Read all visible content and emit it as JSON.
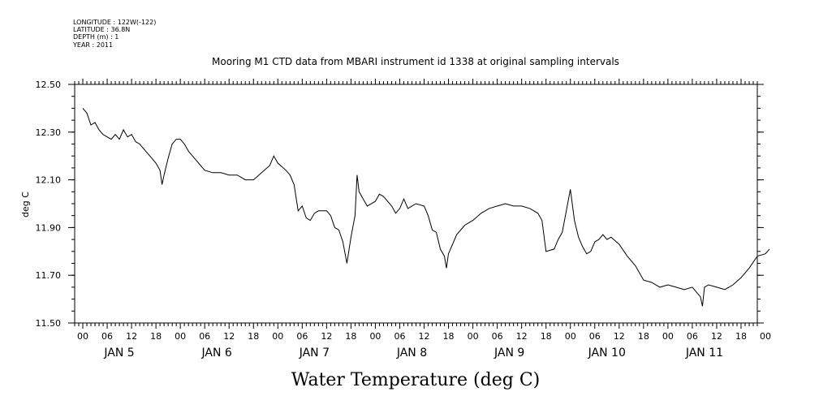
{
  "header": {
    "lines": [
      "LONGITUDE : 122W(-122)",
      "LATITUDE : 36.8N",
      "DEPTH (m) : 1",
      "YEAR : 2011"
    ]
  },
  "chart_data": {
    "type": "line",
    "title": "Mooring M1 CTD data from MBARI instrument id 1338 at original sampling intervals",
    "xlabel": "Water Temperature (deg C)",
    "ylabel": "deg C",
    "xlim_hours": [
      -2,
      166
    ],
    "ylim": [
      11.5,
      12.5
    ],
    "yticks": [
      "12.50",
      "12.30",
      "12.10",
      "11.90",
      "11.70",
      "11.50"
    ],
    "ytick_values": [
      12.5,
      12.3,
      12.1,
      11.9,
      11.7,
      11.5
    ],
    "hour_ticks": [
      "00",
      "06",
      "12",
      "18"
    ],
    "days": [
      "JAN 5",
      "JAN 6",
      "JAN 7",
      "JAN 8",
      "JAN 9",
      "JAN 10",
      "JAN 11"
    ],
    "series": [
      {
        "points": [
          [
            "JAN 5 00:00",
            12.4
          ],
          [
            "JAN 5 01:00",
            12.38
          ],
          [
            "JAN 5 02:00",
            12.33
          ],
          [
            "JAN 5 03:00",
            12.34
          ],
          [
            "JAN 5 04:00",
            12.31
          ],
          [
            "JAN 5 05:00",
            12.29
          ],
          [
            "JAN 5 06:00",
            12.28
          ],
          [
            "JAN 5 07:00",
            12.27
          ],
          [
            "JAN 5 08:00",
            12.29
          ],
          [
            "JAN 5 09:00",
            12.27
          ],
          [
            "JAN 5 10:00",
            12.31
          ],
          [
            "JAN 5 11:00",
            12.28
          ],
          [
            "JAN 5 12:00",
            12.29
          ],
          [
            "JAN 5 13:00",
            12.26
          ],
          [
            "JAN 5 14:00",
            12.25
          ],
          [
            "JAN 5 15:00",
            12.23
          ],
          [
            "JAN 5 16:00",
            12.21
          ],
          [
            "JAN 5 17:00",
            12.19
          ],
          [
            "JAN 5 18:00",
            12.17
          ],
          [
            "JAN 5 19:00",
            12.14
          ],
          [
            "JAN 5 19:30",
            12.08
          ],
          [
            "JAN 5 20:00",
            12.12
          ],
          [
            "JAN 5 21:00",
            12.19
          ],
          [
            "JAN 5 22:00",
            12.25
          ],
          [
            "JAN 5 23:00",
            12.27
          ],
          [
            "JAN 6 00:00",
            12.27
          ],
          [
            "JAN 6 01:00",
            12.25
          ],
          [
            "JAN 6 02:00",
            12.22
          ],
          [
            "JAN 6 03:00",
            12.2
          ],
          [
            "JAN 6 04:00",
            12.18
          ],
          [
            "JAN 6 05:00",
            12.16
          ],
          [
            "JAN 6 06:00",
            12.14
          ],
          [
            "JAN 6 08:00",
            12.13
          ],
          [
            "JAN 6 10:00",
            12.13
          ],
          [
            "JAN 6 12:00",
            12.12
          ],
          [
            "JAN 6 14:00",
            12.12
          ],
          [
            "JAN 6 16:00",
            12.1
          ],
          [
            "JAN 6 18:00",
            12.1
          ],
          [
            "JAN 6 20:00",
            12.13
          ],
          [
            "JAN 6 22:00",
            12.16
          ],
          [
            "JAN 6 23:00",
            12.2
          ],
          [
            "JAN 7 00:00",
            12.17
          ],
          [
            "JAN 7 02:00",
            12.14
          ],
          [
            "JAN 7 03:00",
            12.12
          ],
          [
            "JAN 7 04:00",
            12.08
          ],
          [
            "JAN 7 05:00",
            11.97
          ],
          [
            "JAN 7 06:00",
            11.99
          ],
          [
            "JAN 7 07:00",
            11.94
          ],
          [
            "JAN 7 08:00",
            11.93
          ],
          [
            "JAN 7 09:00",
            11.96
          ],
          [
            "JAN 7 10:00",
            11.97
          ],
          [
            "JAN 7 12:00",
            11.97
          ],
          [
            "JAN 7 13:00",
            11.95
          ],
          [
            "JAN 7 14:00",
            11.9
          ],
          [
            "JAN 7 15:00",
            11.89
          ],
          [
            "JAN 7 16:00",
            11.84
          ],
          [
            "JAN 7 17:00",
            11.75
          ],
          [
            "JAN 7 18:00",
            11.86
          ],
          [
            "JAN 7 19:00",
            11.95
          ],
          [
            "JAN 7 19:30",
            12.12
          ],
          [
            "JAN 7 20:00",
            12.05
          ],
          [
            "JAN 7 21:00",
            12.02
          ],
          [
            "JAN 7 22:00",
            11.99
          ],
          [
            "JAN 8 00:00",
            12.01
          ],
          [
            "JAN 8 01:00",
            12.04
          ],
          [
            "JAN 8 02:00",
            12.03
          ],
          [
            "JAN 8 04:00",
            11.99
          ],
          [
            "JAN 8 05:00",
            11.96
          ],
          [
            "JAN 8 06:00",
            11.98
          ],
          [
            "JAN 8 07:00",
            12.02
          ],
          [
            "JAN 8 08:00",
            11.98
          ],
          [
            "JAN 8 10:00",
            12.0
          ],
          [
            "JAN 8 12:00",
            11.99
          ],
          [
            "JAN 8 13:00",
            11.95
          ],
          [
            "JAN 8 14:00",
            11.89
          ],
          [
            "JAN 8 15:00",
            11.88
          ],
          [
            "JAN 8 16:00",
            11.81
          ],
          [
            "JAN 8 17:00",
            11.78
          ],
          [
            "JAN 8 17:30",
            11.73
          ],
          [
            "JAN 8 18:00",
            11.79
          ],
          [
            "JAN 8 19:00",
            11.83
          ],
          [
            "JAN 8 20:00",
            11.87
          ],
          [
            "JAN 8 22:00",
            11.91
          ],
          [
            "JAN 9 00:00",
            11.93
          ],
          [
            "JAN 9 02:00",
            11.96
          ],
          [
            "JAN 9 04:00",
            11.98
          ],
          [
            "JAN 9 06:00",
            11.99
          ],
          [
            "JAN 9 08:00",
            12.0
          ],
          [
            "JAN 9 10:00",
            11.99
          ],
          [
            "JAN 9 12:00",
            11.99
          ],
          [
            "JAN 9 14:00",
            11.98
          ],
          [
            "JAN 9 16:00",
            11.96
          ],
          [
            "JAN 9 17:00",
            11.93
          ],
          [
            "JAN 9 18:00",
            11.8
          ],
          [
            "JAN 9 20:00",
            11.81
          ],
          [
            "JAN 9 21:00",
            11.85
          ],
          [
            "JAN 9 22:00",
            11.88
          ],
          [
            "JAN 9 23:00",
            11.97
          ],
          [
            "JAN 10 00:00",
            12.06
          ],
          [
            "JAN 10 01:00",
            11.93
          ],
          [
            "JAN 10 02:00",
            11.86
          ],
          [
            "JAN 10 03:00",
            11.82
          ],
          [
            "JAN 10 04:00",
            11.79
          ],
          [
            "JAN 10 05:00",
            11.8
          ],
          [
            "JAN 10 06:00",
            11.84
          ],
          [
            "JAN 10 07:00",
            11.85
          ],
          [
            "JAN 10 08:00",
            11.87
          ],
          [
            "JAN 10 09:00",
            11.85
          ],
          [
            "JAN 10 10:00",
            11.86
          ],
          [
            "JAN 10 12:00",
            11.83
          ],
          [
            "JAN 10 14:00",
            11.78
          ],
          [
            "JAN 10 16:00",
            11.74
          ],
          [
            "JAN 10 18:00",
            11.68
          ],
          [
            "JAN 10 20:00",
            11.67
          ],
          [
            "JAN 10 22:00",
            11.65
          ],
          [
            "JAN 11 00:00",
            11.66
          ],
          [
            "JAN 11 02:00",
            11.65
          ],
          [
            "JAN 11 04:00",
            11.64
          ],
          [
            "JAN 11 06:00",
            11.65
          ],
          [
            "JAN 11 07:00",
            11.63
          ],
          [
            "JAN 11 08:00",
            11.61
          ],
          [
            "JAN 11 08:30",
            11.57
          ],
          [
            "JAN 11 09:00",
            11.65
          ],
          [
            "JAN 11 10:00",
            11.66
          ],
          [
            "JAN 11 12:00",
            11.65
          ],
          [
            "JAN 11 14:00",
            11.64
          ],
          [
            "JAN 11 16:00",
            11.66
          ],
          [
            "JAN 11 18:00",
            11.69
          ],
          [
            "JAN 11 20:00",
            11.73
          ],
          [
            "JAN 11 22:00",
            11.78
          ],
          [
            "JAN 12 00:00",
            11.79
          ],
          [
            "JAN 12 01:00",
            11.81
          ]
        ]
      }
    ]
  }
}
